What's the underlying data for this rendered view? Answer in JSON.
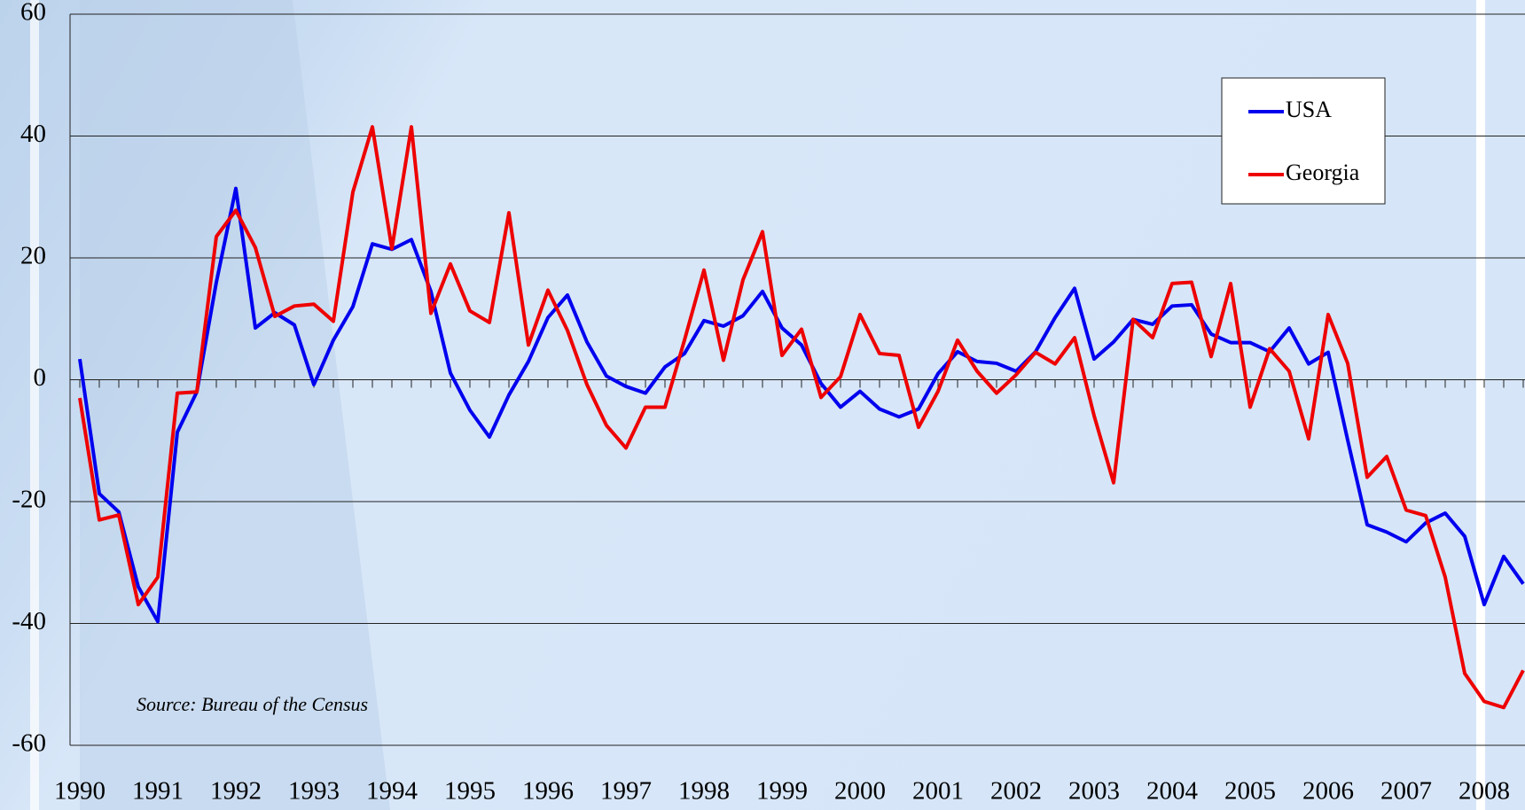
{
  "chart_data": {
    "type": "line",
    "annotation": "Source: Bureau of the Census",
    "categories": [
      "1990",
      null,
      null,
      null,
      "1991",
      null,
      null,
      null,
      "1992",
      null,
      null,
      null,
      "1993",
      null,
      null,
      null,
      "1994",
      null,
      null,
      null,
      "1995",
      null,
      null,
      null,
      "1996",
      null,
      null,
      null,
      "1997",
      null,
      null,
      null,
      "1998",
      null,
      null,
      null,
      "1999",
      null,
      null,
      null,
      "2000",
      null,
      null,
      null,
      "2001",
      null,
      null,
      null,
      "2002",
      null,
      null,
      null,
      "2003",
      null,
      null,
      null,
      "2004",
      null,
      null,
      null,
      "2005",
      null,
      null,
      null,
      "2006",
      null,
      null,
      null,
      "2007",
      null,
      null,
      null,
      "2008",
      null,
      null
    ],
    "series": [
      {
        "name": "USA",
        "color": "#0000ee",
        "values": [
          3.4,
          -18.7,
          -21.7,
          -34,
          -39.7,
          -8.6,
          -2,
          16,
          31.4,
          8.5,
          11,
          9,
          -0.8,
          6.5,
          12,
          22.3,
          21.4,
          23,
          14.5,
          1.1,
          -5,
          -9.4,
          -2.5,
          3,
          10.2,
          13.9,
          6.2,
          0.6,
          -1.1,
          -2.2,
          2.1,
          4.3,
          9.7,
          8.8,
          10.5,
          14.5,
          8.5,
          5.7,
          -0.6,
          -4.5,
          -1.9,
          -4.8,
          -6.1,
          -4.8,
          1,
          4.6,
          3,
          2.7,
          1.4,
          4.6,
          10.2,
          15,
          3.4,
          6.2,
          9.9,
          9.1,
          12.1,
          12.3,
          7.5,
          6.1,
          6.1,
          4.6,
          8.5,
          2.6,
          4.5,
          -9.9,
          -23.8,
          -25,
          -26.6,
          -23.5,
          -21.9,
          -25.7,
          -36.9,
          -29,
          -33.5
        ]
      },
      {
        "name": "Georgia",
        "color": "#ee0000",
        "values": [
          -3,
          -23,
          -22.2,
          -36.9,
          -32.4,
          -2.2,
          -2,
          23.5,
          27.8,
          21.7,
          10.4,
          12.1,
          12.4,
          9.6,
          30.8,
          41.5,
          21.5,
          41.5,
          10.9,
          19,
          11.3,
          9.4,
          27.4,
          5.7,
          14.7,
          8.1,
          -0.8,
          -7.5,
          -11.2,
          -4.5,
          -4.5,
          6.5,
          18,
          3.2,
          16.4,
          24.3,
          4,
          8.3,
          -2.9,
          0.5,
          10.7,
          4.3,
          4,
          -7.8,
          -1.9,
          6.5,
          1.4,
          -2.2,
          0.8,
          4.5,
          2.6,
          6.9,
          -5.9,
          -16.9,
          9.9,
          6.9,
          15.8,
          16,
          3.8,
          15.8,
          -4.5,
          5.1,
          1.4,
          -9.7,
          10.7,
          2.7,
          -16,
          -12.6,
          -21.4,
          -22.3,
          -32.4,
          -48.2,
          -52.8,
          -53.8,
          -47.7
        ]
      }
    ],
    "ylim": [
      -60,
      60
    ],
    "yticks": [
      -60,
      -40,
      -20,
      0,
      20,
      40,
      60
    ],
    "grid": true,
    "legend": "top-right"
  }
}
